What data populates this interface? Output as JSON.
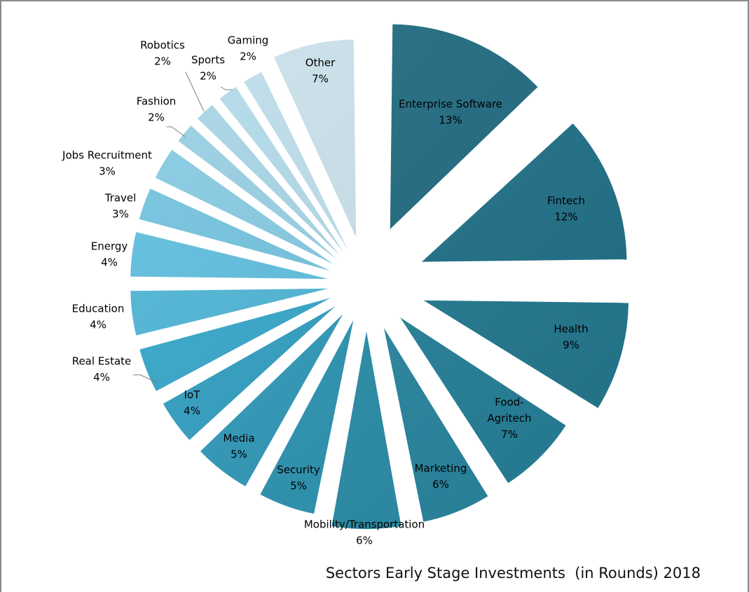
{
  "chart_data": {
    "type": "pie",
    "title": "Sectors Early Stage Investments  (in Rounds) 2018",
    "value_format": "percent",
    "exploded": true,
    "slices": [
      {
        "label": "Enterprise Software",
        "value": 13,
        "display": "13%",
        "color": "#1e6a80"
      },
      {
        "label": "Fintech",
        "value": 12,
        "display": "12%",
        "color": "#1f7189"
      },
      {
        "label": "Health",
        "value": 9,
        "display": "9%",
        "color": "#227a92"
      },
      {
        "label": "Food-\nAgritech",
        "value": 7,
        "display": "7%",
        "color": "#25829b"
      },
      {
        "label": "Marketing",
        "value": 6,
        "display": "6%",
        "color": "#2888a2"
      },
      {
        "label": "Mobility/Transportation",
        "value": 6,
        "display": "6%",
        "color": "#2a8fab"
      },
      {
        "label": "Security",
        "value": 5,
        "display": "5%",
        "color": "#2c95b3"
      },
      {
        "label": "Media",
        "value": 5,
        "display": "5%",
        "color": "#2f9abb"
      },
      {
        "label": "IoT",
        "value": 4,
        "display": "4%",
        "color": "#31a0c3"
      },
      {
        "label": "Real Estate",
        "value": 4,
        "display": "4%",
        "color": "#35a7cb"
      },
      {
        "label": "Education",
        "value": 4,
        "display": "4%",
        "color": "#4fb6d8"
      },
      {
        "label": "Energy",
        "value": 4,
        "display": "4%",
        "color": "#5ebfdf"
      },
      {
        "label": "Travel",
        "value": 3,
        "display": "3%",
        "color": "#73c4e0"
      },
      {
        "label": "Jobs Recruitment",
        "value": 3,
        "display": "3%",
        "color": "#86cbe3"
      },
      {
        "label": "Fashion",
        "value": 2,
        "display": "2%",
        "color": "#98d0e4"
      },
      {
        "label": "Robotics",
        "value": 2,
        "display": "2%",
        "color": "#a8d6e7"
      },
      {
        "label": "Sports",
        "value": 2,
        "display": "2%",
        "color": "#b3dbea"
      },
      {
        "label": "Gaming",
        "value": 2,
        "display": "2%",
        "color": "#bedfec"
      },
      {
        "label": "Other",
        "value": 7,
        "display": "7%",
        "color": "#cbe2ec"
      }
    ]
  }
}
